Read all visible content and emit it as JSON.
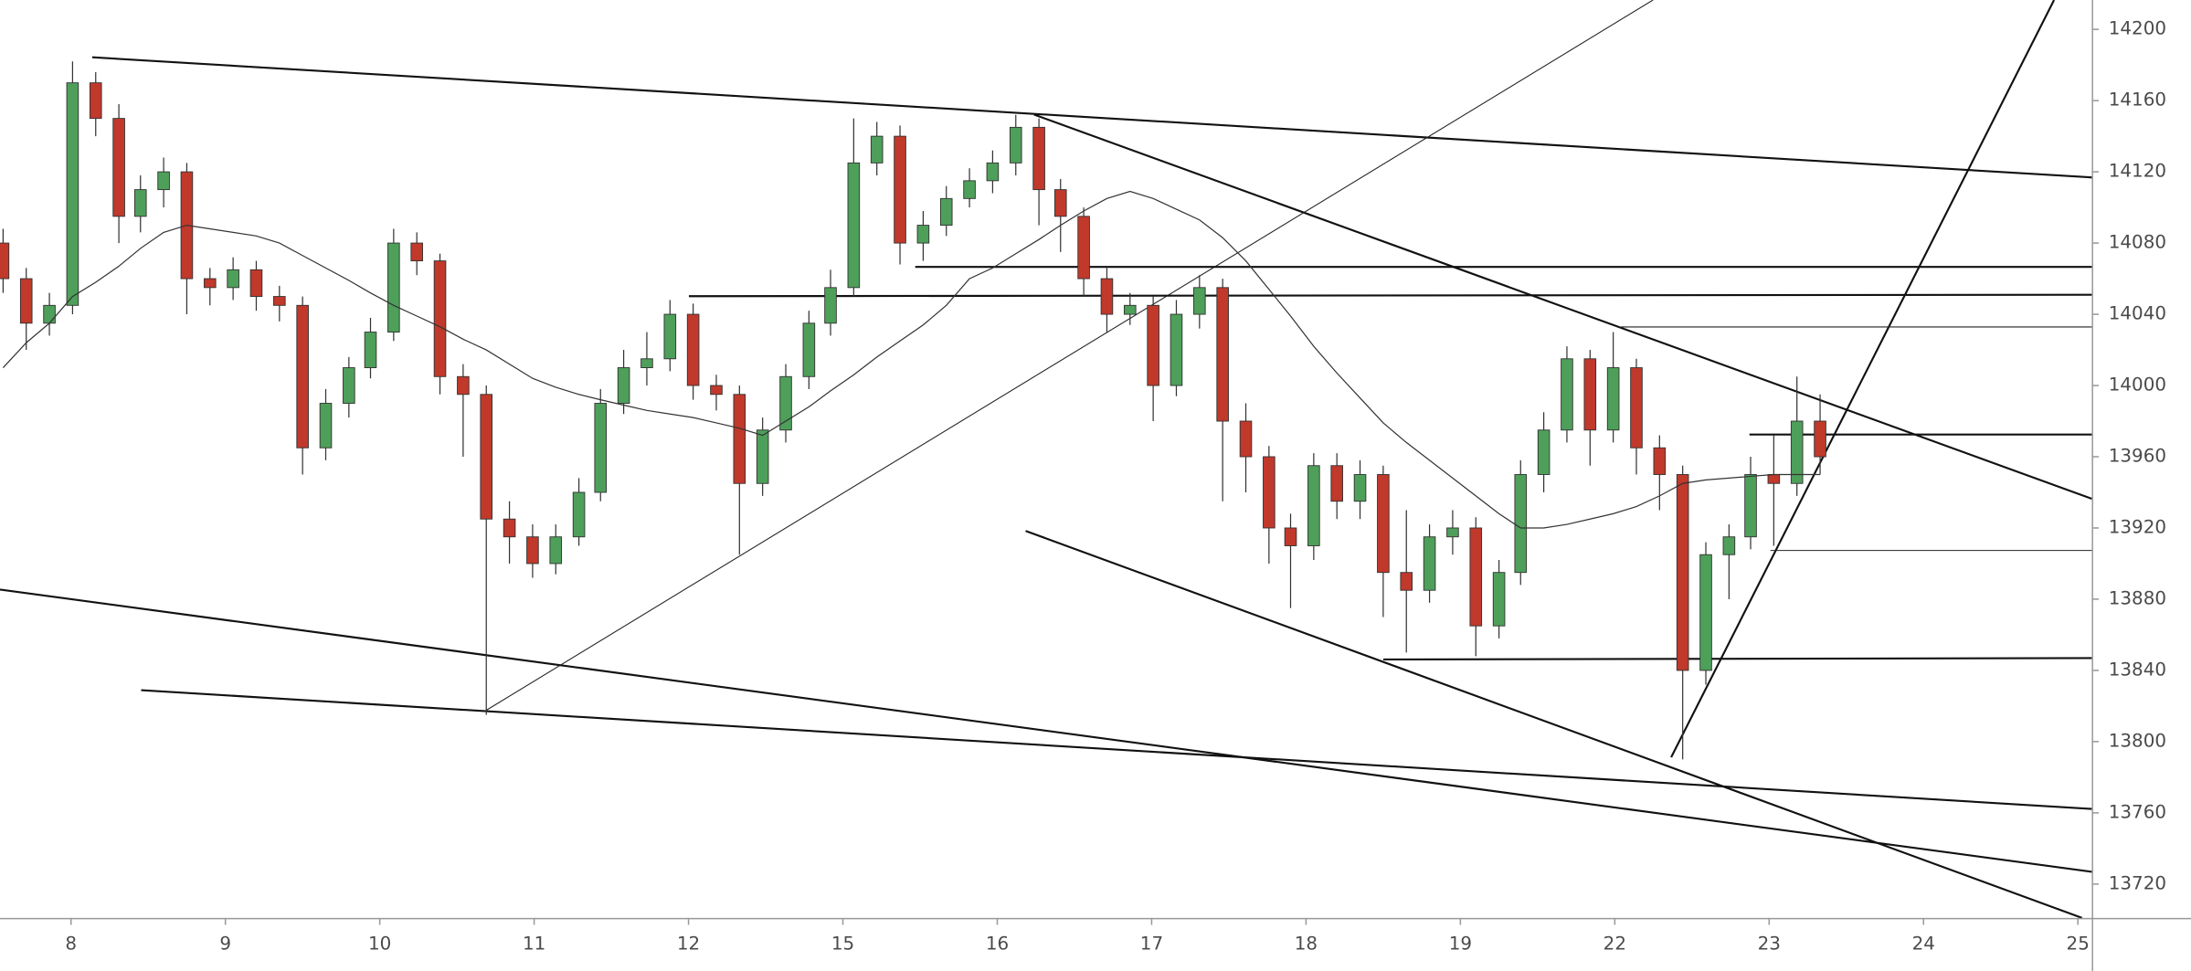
{
  "chart_data": {
    "type": "candlestick",
    "x": [
      -0.44,
      -0.29,
      -0.14,
      0.01,
      0.16,
      0.31,
      0.45,
      0.6,
      0.75,
      0.9,
      1.05,
      1.2,
      1.35,
      1.5,
      1.65,
      1.8,
      1.94,
      2.09,
      2.24,
      2.39,
      2.54,
      2.69,
      2.84,
      2.99,
      3.14,
      3.29,
      3.43,
      3.58,
      3.73,
      3.88,
      4.03,
      4.18,
      4.33,
      4.48,
      4.63,
      4.78,
      4.92,
      5.07,
      5.22,
      5.37,
      5.52,
      5.67,
      5.82,
      5.97,
      6.12,
      6.27,
      6.41,
      6.56,
      6.71,
      6.86,
      7.01,
      7.16,
      7.31,
      7.46,
      7.61,
      7.76,
      7.9,
      8.05,
      8.2,
      8.35,
      8.5,
      8.65,
      8.8,
      8.95,
      9.1,
      9.25,
      9.39,
      9.54,
      9.69,
      9.84,
      9.99,
      10.14,
      10.29,
      10.44,
      10.59,
      10.74,
      10.88,
      11.03,
      11.18,
      11.33
    ],
    "open": [
      14080,
      14060,
      14035,
      14045,
      14170,
      14150,
      14095,
      14110,
      14120,
      14060,
      14055,
      14065,
      14050,
      14045,
      13965,
      13990,
      14010,
      14030,
      14080,
      14070,
      14005,
      13995,
      13925,
      13915,
      13900,
      13915,
      13940,
      13990,
      14010,
      14015,
      14040,
      14000,
      13995,
      13945,
      13975,
      14005,
      14035,
      14055,
      14125,
      14140,
      14080,
      14090,
      14105,
      14115,
      14125,
      14145,
      14110,
      14095,
      14060,
      14040,
      14045,
      14000,
      14040,
      14055,
      13980,
      13960,
      13920,
      13910,
      13955,
      13935,
      13950,
      13895,
      13885,
      13915,
      13920,
      13865,
      13895,
      13950,
      13975,
      14015,
      13975,
      14010,
      13965,
      13950,
      13840,
      13905,
      13915,
      13950,
      13945,
      13980
    ],
    "high": [
      14088,
      14066,
      14052,
      14182,
      14176,
      14158,
      14118,
      14128,
      14125,
      14066,
      14072,
      14070,
      14056,
      14050,
      13998,
      14016,
      14038,
      14088,
      14086,
      14074,
      14012,
      14000,
      13935,
      13922,
      13922,
      13948,
      13998,
      14020,
      14030,
      14048,
      14046,
      14006,
      14000,
      13982,
      14012,
      14042,
      14065,
      14150,
      14148,
      14146,
      14098,
      14112,
      14122,
      14132,
      14152,
      14150,
      14116,
      14100,
      14066,
      14052,
      14050,
      14048,
      14062,
      14060,
      13990,
      13966,
      13928,
      13962,
      13962,
      13958,
      13955,
      13930,
      13922,
      13930,
      13926,
      13902,
      13958,
      13985,
      14022,
      14020,
      14030,
      14015,
      13972,
      13955,
      13912,
      13922,
      13960,
      13972,
      14005,
      13995
    ],
    "low": [
      14052,
      14020,
      14028,
      14040,
      14140,
      14080,
      14086,
      14100,
      14040,
      14045,
      14048,
      14042,
      14036,
      13950,
      13958,
      13982,
      14004,
      14025,
      14062,
      13995,
      13960,
      13815,
      13900,
      13892,
      13894,
      13910,
      13935,
      13984,
      14000,
      14008,
      13992,
      13986,
      13905,
      13938,
      13968,
      13998,
      14028,
      14050,
      14118,
      14068,
      14070,
      14084,
      14100,
      14108,
      14118,
      14090,
      14075,
      14050,
      14030,
      14034,
      13980,
      13994,
      14032,
      13935,
      13940,
      13900,
      13875,
      13902,
      13925,
      13925,
      13870,
      13850,
      13878,
      13905,
      13848,
      13858,
      13888,
      13940,
      13968,
      13955,
      13968,
      13950,
      13930,
      13790,
      13832,
      13880,
      13908,
      13910,
      13938,
      13950
    ],
    "close": [
      14060,
      14035,
      14045,
      14170,
      14150,
      14095,
      14110,
      14120,
      14060,
      14055,
      14065,
      14050,
      14045,
      13965,
      13990,
      14010,
      14030,
      14080,
      14070,
      14005,
      13995,
      13925,
      13915,
      13900,
      13915,
      13940,
      13990,
      14010,
      14015,
      14040,
      14000,
      13995,
      13945,
      13975,
      14005,
      14035,
      14055,
      14125,
      14140,
      14080,
      14090,
      14105,
      14115,
      14125,
      14145,
      14110,
      14095,
      14060,
      14040,
      14045,
      14000,
      14040,
      14055,
      13980,
      13960,
      13920,
      13910,
      13955,
      13935,
      13950,
      13895,
      13885,
      13915,
      13920,
      13865,
      13895,
      13950,
      13975,
      14015,
      13975,
      14010,
      13965,
      13950,
      13840,
      13905,
      13915,
      13950,
      13945,
      13980,
      13960
    ],
    "ma": [
      14010,
      14024,
      14035,
      14050,
      14058,
      14067,
      14077,
      14086,
      14090,
      14088,
      14086,
      14084,
      14080,
      14073,
      14066,
      14059,
      14052,
      14045,
      14039,
      14033,
      14026,
      14020,
      14012,
      14004,
      13999,
      13995,
      13992,
      13989,
      13986,
      13984,
      13982,
      13979,
      13976,
      13972,
      13980,
      13988,
      13997,
      14006,
      14016,
      14025,
      14034,
      14045,
      14060,
      14066,
      14074,
      14082,
      14090,
      14098,
      14105,
      14109,
      14105,
      14099,
      14093,
      14083,
      14070,
      14054,
      14039,
      14022,
      14007,
      13993,
      13979,
      13968,
      13958,
      13948,
      13938,
      13928,
      13920,
      13920,
      13922,
      13925,
      13928,
      13932,
      13938,
      13945,
      13947,
      13948,
      13949,
      13950,
      13950,
      13950
    ],
    "up_color": "#4e9f5a",
    "down_color": "#c0392b",
    "ma_color": "#333333",
    "xlim": [
      -0.46,
      13.09
    ],
    "ylim": [
      13701,
      14216.5
    ],
    "yticks": [
      13720,
      13760,
      13800,
      13840,
      13880,
      13920,
      13960,
      14000,
      14040,
      14080,
      14120,
      14160,
      14200
    ],
    "xticks": [
      {
        "value": 0,
        "label": "8"
      },
      {
        "value": 1,
        "label": "9"
      },
      {
        "value": 2,
        "label": "10"
      },
      {
        "value": 3,
        "label": "11"
      },
      {
        "value": 4,
        "label": "12"
      },
      {
        "value": 5,
        "label": "15"
      },
      {
        "value": 6,
        "label": "16"
      },
      {
        "value": 7,
        "label": "17"
      },
      {
        "value": 8,
        "label": "18"
      },
      {
        "value": 9,
        "label": "19"
      },
      {
        "value": 10,
        "label": "22"
      },
      {
        "value": 11,
        "label": "23"
      },
      {
        "value": 12,
        "label": "24"
      },
      {
        "value": 13,
        "label": "25"
      }
    ]
  }
}
